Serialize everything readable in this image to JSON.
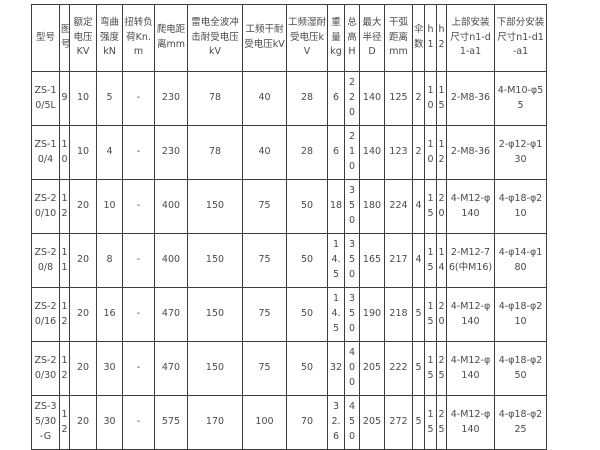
{
  "table": {
    "headers": [
      "型号",
      "图号",
      "额定电压KV",
      "弯曲强度kN",
      "扭转负荷Kn.m",
      "爬电距离mm",
      "雷电全波冲击耐受电压kV",
      "工频干耐受电压kV",
      "工频湿耐受电压kV",
      "重量kg",
      "总高H",
      "最大半径D",
      "干弧距离mm",
      "伞数",
      "h1",
      "h2",
      "上部安装尺寸n1-d1-a1",
      "下部分安装尺寸n1-d1-a1"
    ],
    "rows": [
      [
        "ZS-10/5L",
        "9",
        "10",
        "5",
        "-",
        "230",
        "78",
        "40",
        "28",
        "6",
        "220",
        "140",
        "125",
        "2",
        "10",
        "15",
        "2-M8-36",
        "4-M10-φ55"
      ],
      [
        "ZS-10/4",
        "10",
        "10",
        "4",
        "-",
        "230",
        "78",
        "40",
        "28",
        "6",
        "210",
        "140",
        "123",
        "2",
        "10",
        "12",
        "2-M8-36",
        "2-φ12-φ130"
      ],
      [
        "ZS-20/10",
        "12",
        "20",
        "10",
        "-",
        "400",
        "150",
        "75",
        "50",
        "18",
        "350",
        "180",
        "224",
        "4",
        "15",
        "20",
        "4-M12-φ140",
        "4-φ18-φ210"
      ],
      [
        "ZS-20/8",
        "11",
        "20",
        "8",
        "-",
        "400",
        "150",
        "75",
        "50",
        "14.5",
        "350",
        "165",
        "217",
        "4",
        "15",
        "14",
        "2-M12-76(中M16)",
        "4-φ14-φ180"
      ],
      [
        "ZS-20/16",
        "12",
        "20",
        "16",
        "-",
        "470",
        "150",
        "75",
        "50",
        "14.5",
        "350",
        "190",
        "218",
        "5",
        "15",
        "20",
        "4-M12-φ140",
        "4-φ18-φ210"
      ],
      [
        "ZS-20/30",
        "12",
        "20",
        "30",
        "-",
        "470",
        "150",
        "75",
        "50",
        "32",
        "400",
        "205",
        "222",
        "5",
        "15",
        "25",
        "4-M12-φ140",
        "4-φ18-φ250"
      ],
      [
        "ZS-35/30-G",
        "12",
        "20",
        "30",
        "-",
        "575",
        "170",
        "100",
        "70",
        "32.6",
        "450",
        "205",
        "272",
        "5",
        "15",
        "25",
        "4-M12-φ140",
        "4-φ18-φ225"
      ]
    ],
    "colors": {
      "border": "#3d3d3d",
      "text": "#4a4a4a",
      "background": "#ffffff"
    }
  }
}
